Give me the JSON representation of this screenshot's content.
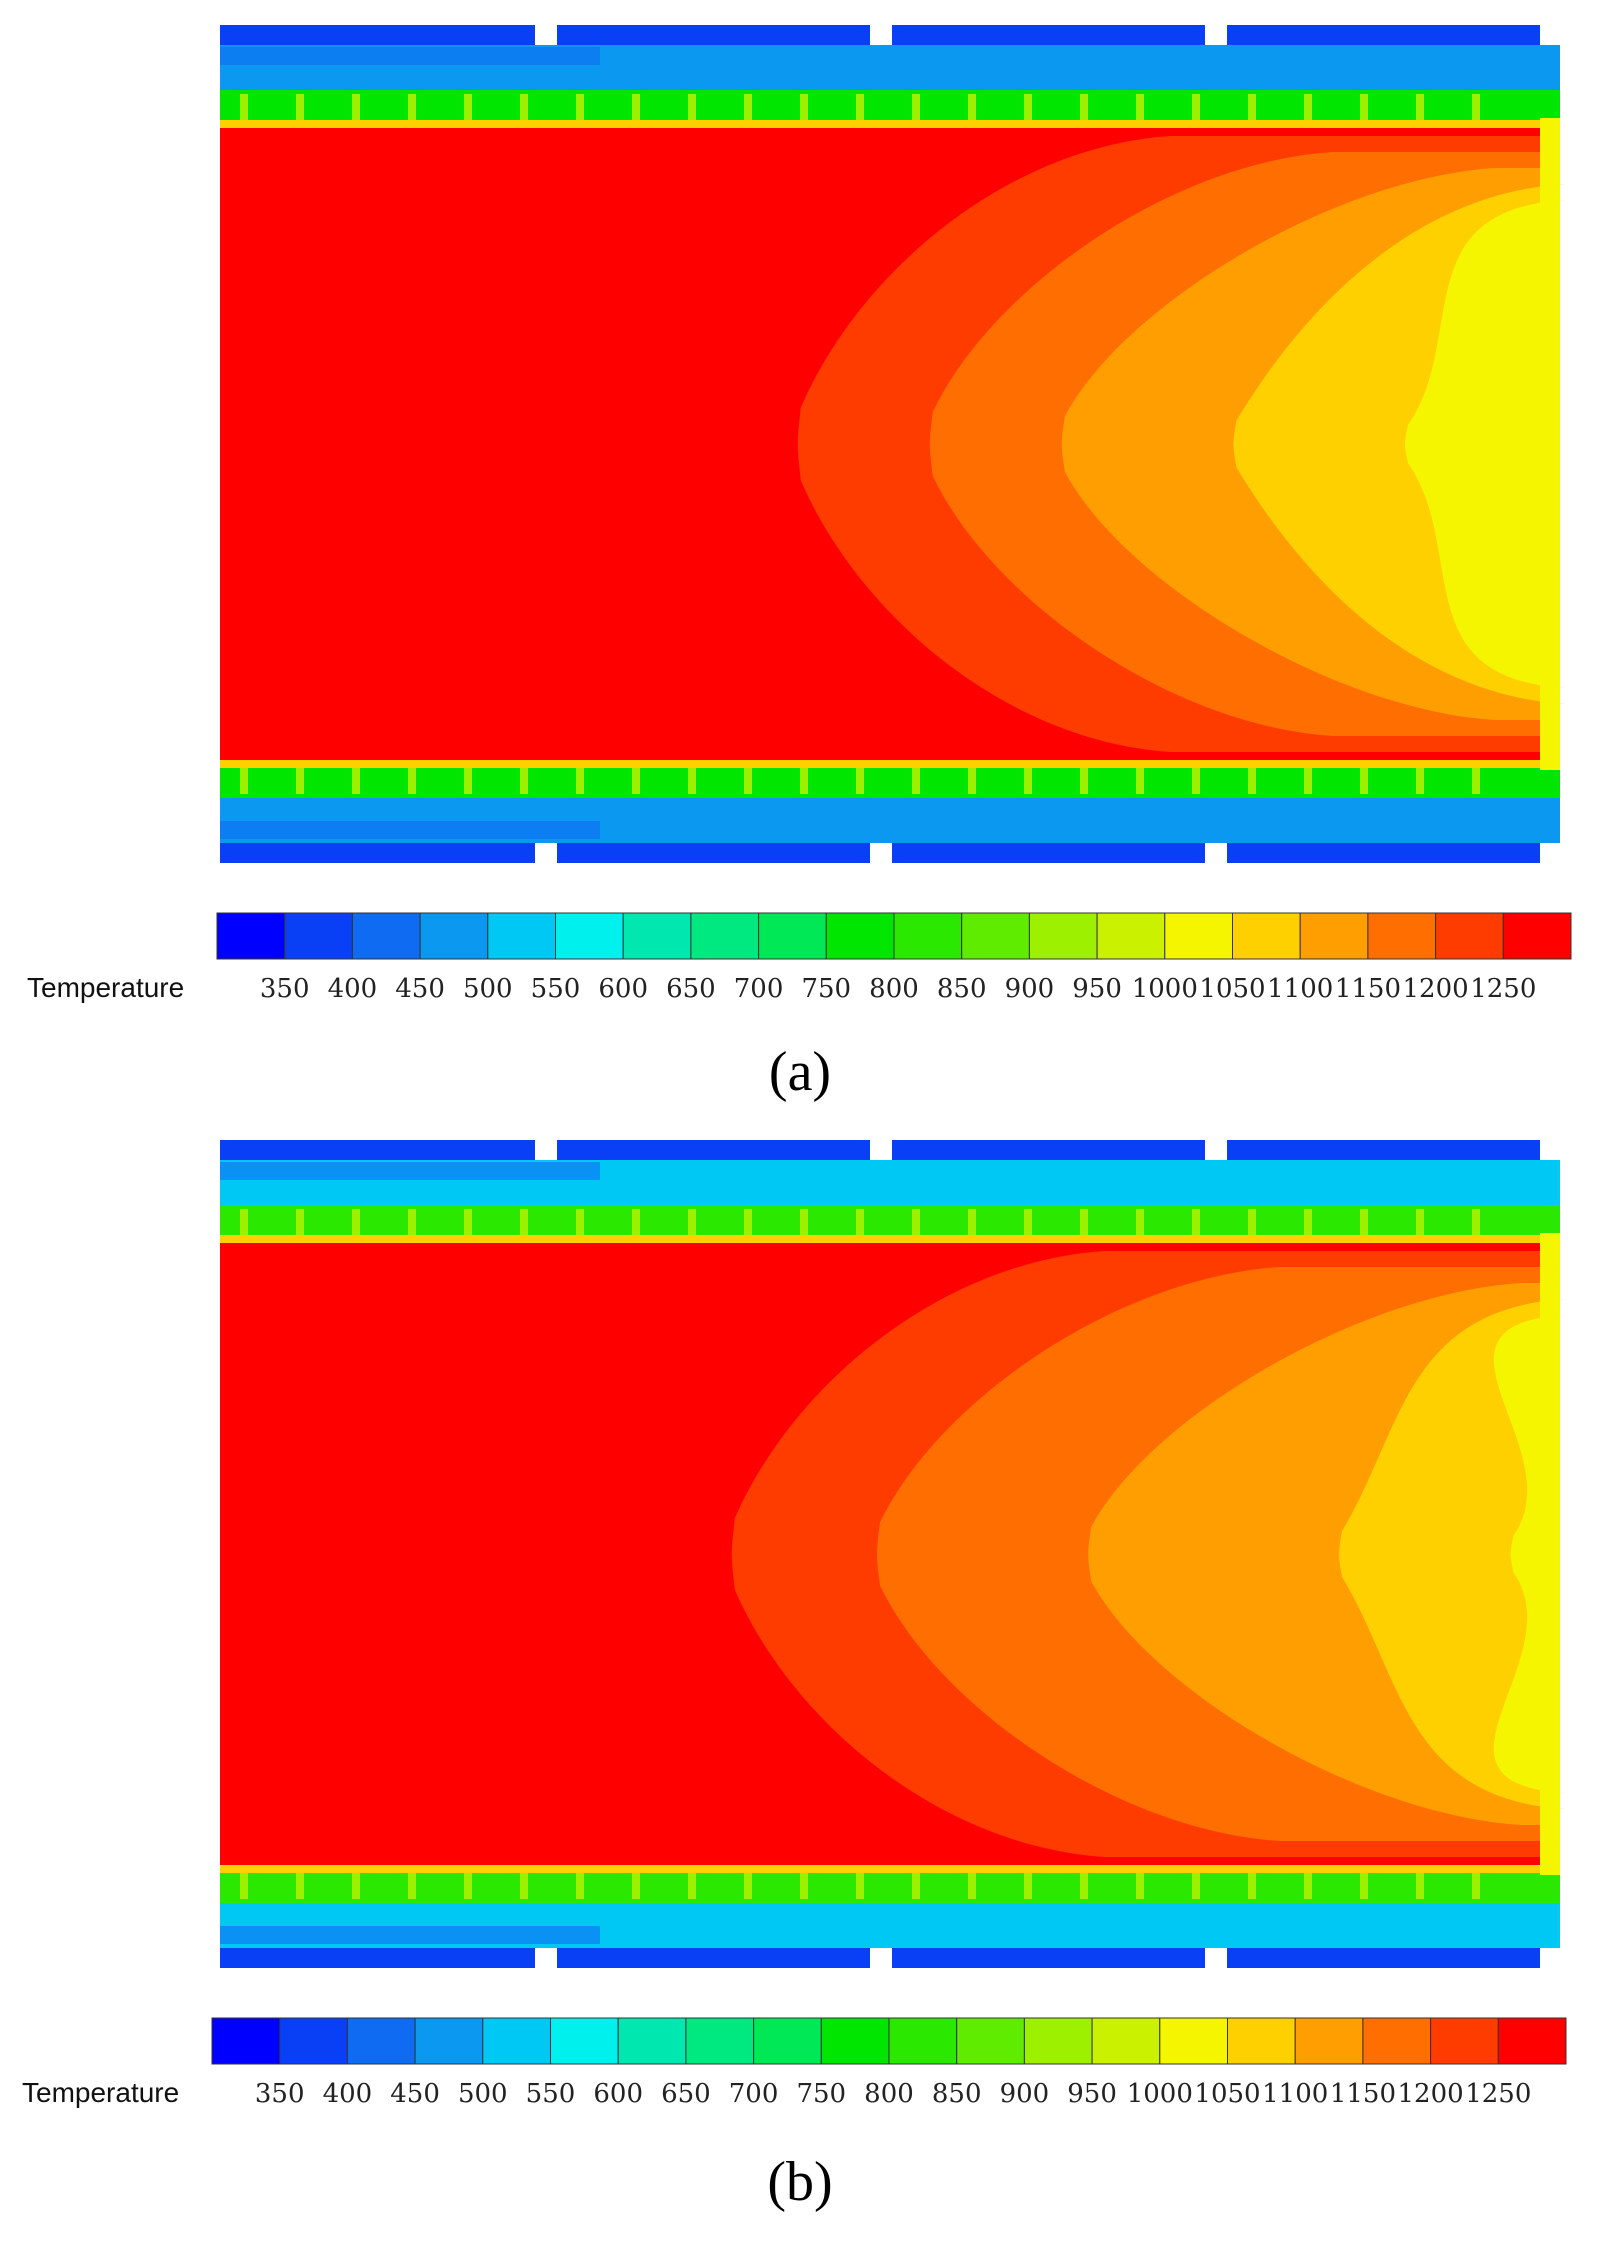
{
  "chart_data": [
    {
      "type": "heatmap",
      "panel": "a",
      "caption": {
        "open": "(",
        "letter": "a",
        "close": ")"
      },
      "colorbar": {
        "label": "Temperature",
        "ticks": [
          "350",
          "400",
          "450",
          "500",
          "550",
          "600",
          "650",
          "700",
          "750",
          "800",
          "850",
          "900",
          "950",
          "1000",
          "1050",
          "1100",
          "1150",
          "1200",
          "1250"
        ],
        "range": [
          325,
          1275
        ]
      },
      "field": {
        "core_temperature": 1275,
        "wall_temperature": 775,
        "outer_jacket_temperature": 500,
        "outlet_temperature": 1000,
        "contour_levels": [
          1225,
          1175,
          1125,
          1075,
          1025
        ],
        "contour_tip_positions": [
          0.44,
          0.54,
          0.64,
          0.77,
          0.9
        ]
      }
    },
    {
      "type": "heatmap",
      "panel": "b",
      "caption": {
        "open": "(",
        "letter": "b",
        "close": ")"
      },
      "colorbar": {
        "label": "Temperature",
        "ticks": [
          "350",
          "400",
          "450",
          "500",
          "550",
          "600",
          "650",
          "700",
          "750",
          "800",
          "850",
          "900",
          "950",
          "1000",
          "1050",
          "1100",
          "1150",
          "1200",
          "1250"
        ],
        "range": [
          325,
          1275
        ]
      },
      "field": {
        "core_temperature": 1275,
        "wall_temperature": 800,
        "outer_jacket_temperature": 550,
        "outlet_temperature": 1000,
        "contour_levels": [
          1225,
          1175,
          1125,
          1075,
          1025
        ],
        "contour_tip_positions": [
          0.39,
          0.5,
          0.66,
          0.85,
          0.98
        ]
      }
    }
  ],
  "colors": {
    "palette": [
      "#0000ff",
      "#0a40f5",
      "#0f6cf2",
      "#0a98f0",
      "#00c8f5",
      "#00f0ee",
      "#00e8b0",
      "#00e880",
      "#00e855",
      "#00e600",
      "#2ae800",
      "#60ec00",
      "#9cf000",
      "#caf200",
      "#f5f500",
      "#ffd000",
      "#ff9e00",
      "#ff6e00",
      "#ff3c00",
      "#ff0000"
    ]
  }
}
